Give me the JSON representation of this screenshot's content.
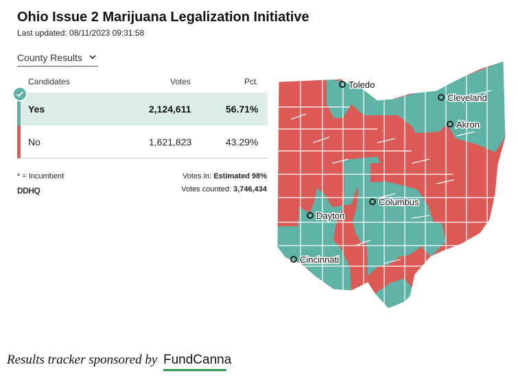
{
  "header": {
    "title": "Ohio Issue 2 Marijuana Legalization Initiative",
    "updated": "Last updated: 08/11/2023 09:31:58"
  },
  "dropdown": {
    "label": "County Results",
    "icon": "chevron-down-icon"
  },
  "table": {
    "headers": {
      "candidates": "Candidates",
      "votes": "Votes",
      "pct": "Pct."
    },
    "rows": [
      {
        "name": "Yes",
        "votes": "2,124,611",
        "pct": "56.71%",
        "winner": true,
        "color": "#5fb3a6"
      },
      {
        "name": "No",
        "votes": "1,621,823",
        "pct": "43.29%",
        "winner": false,
        "color": "#dc5a56"
      }
    ]
  },
  "footer": {
    "incumbent_note": "* = Incumbent",
    "votes_in_label": "Votes in:",
    "votes_in_value": "Estimated 98%",
    "votes_counted_label": "Votes counted:",
    "votes_counted_value": "3,746,434",
    "logo_text": "DDHQ"
  },
  "map": {
    "yes_color": "#5fb3a6",
    "no_color": "#dc5a56",
    "cities": [
      "Toledo",
      "Cleveland",
      "Akron",
      "Columbus",
      "Dayton",
      "Cincinnati"
    ]
  },
  "sponsor": {
    "text": "Results tracker sponsored by",
    "brand": "FundCanna"
  }
}
